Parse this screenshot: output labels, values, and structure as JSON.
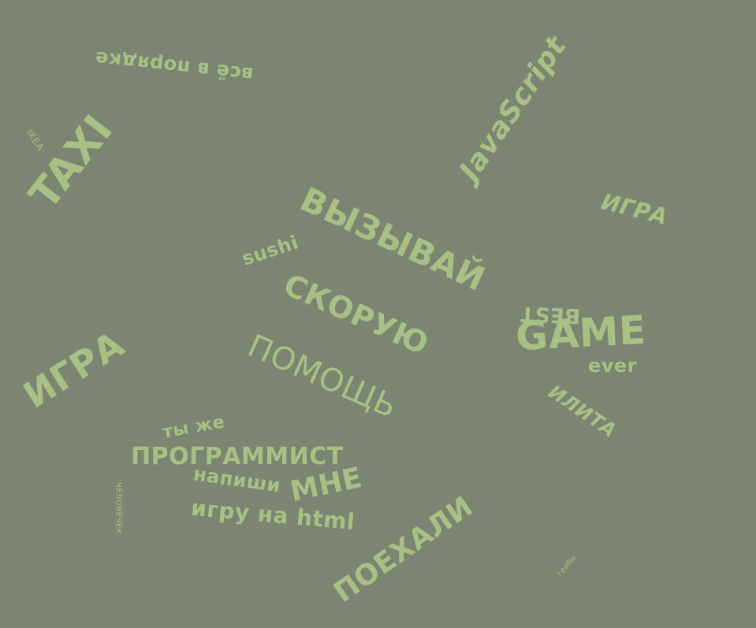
{
  "theme": {
    "background": "#7b8571",
    "text_color": "#a7c185"
  },
  "words": {
    "vsyo_v_poryadke": "всё в порядке",
    "ikea": "IKEA",
    "taxi": "TAXI",
    "javascript": "JavaScript",
    "igra_top": "ИГРА",
    "vyzyvay": "ВЫЗЫВАЙ",
    "sushi": "sushi",
    "skoruyu": "СКОРУЮ",
    "pomosch": "ПОМОЩЬ",
    "best": "BEST",
    "game": "GAME",
    "ever": "ever",
    "ilita": "ИЛИТА",
    "igra_left": "ИГРА",
    "ty_zhe": "ты же",
    "programmist": "ПРОГРАММИСТ",
    "napishi": "напиши",
    "mne": "МНЕ",
    "igru_na_html": "игру на html",
    "chelovechek": "ЧЕЛОВЕЧЕК",
    "poekhali": "ПОЕХАЛИ",
    "griby": "грибы"
  }
}
